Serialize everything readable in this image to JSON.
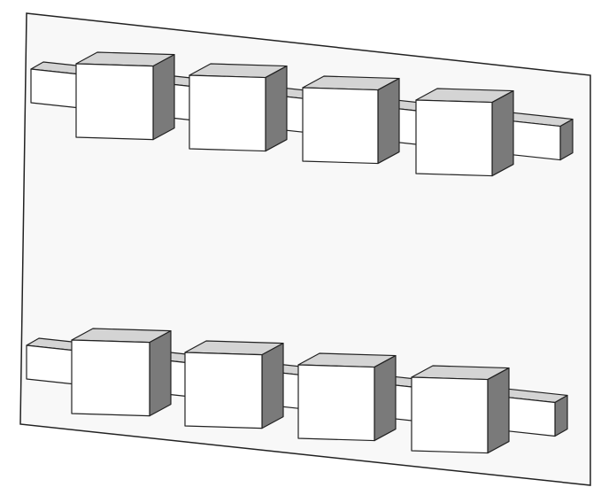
{
  "colors": {
    "background": "#ffffff",
    "board_face": "#f8f8f8",
    "box_front": "#ffffff",
    "box_top": "#d4d4d4",
    "box_side": "#7a7a7a",
    "outline": "#222222"
  },
  "rows": [
    {
      "name": "top-row",
      "boxes": 4,
      "connectors": 5
    },
    {
      "name": "bottom-row",
      "boxes": 4,
      "connectors": 5
    }
  ]
}
